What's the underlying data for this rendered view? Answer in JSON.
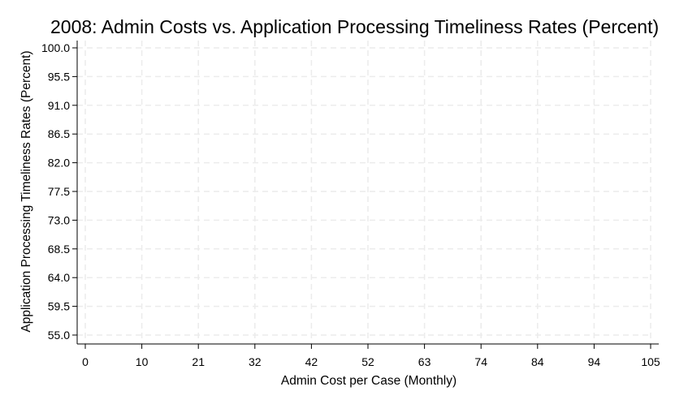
{
  "chart_data": {
    "type": "scatter",
    "title": "2008: Admin Costs vs. Application Processing Timeliness Rates (Percent)",
    "xlabel": "Admin Cost per Case (Monthly)",
    "ylabel": "Application Processing Timeliness Rates (Percent)",
    "x_ticks": [
      "0",
      "10",
      "21",
      "32",
      "42",
      "52",
      "63",
      "74",
      "84",
      "94",
      "105"
    ],
    "x_tick_values": [
      0,
      10.5,
      21,
      31.5,
      42,
      52.5,
      63,
      73.5,
      84,
      94.5,
      105
    ],
    "y_ticks": [
      "100.0",
      "95.5",
      "91.0",
      "86.5",
      "82.0",
      "77.5",
      "73.0",
      "68.5",
      "64.0",
      "59.5",
      "55.0"
    ],
    "y_tick_values": [
      100,
      95.5,
      91,
      86.5,
      82,
      77.5,
      73,
      68.5,
      64,
      59.5,
      55
    ],
    "xlim": [
      0,
      105
    ],
    "ylim": [
      55,
      100
    ],
    "grid": true,
    "x": [],
    "y": [],
    "colors": {
      "grid": "#ececec",
      "axis": "#000000",
      "background": "#ffffff"
    }
  }
}
